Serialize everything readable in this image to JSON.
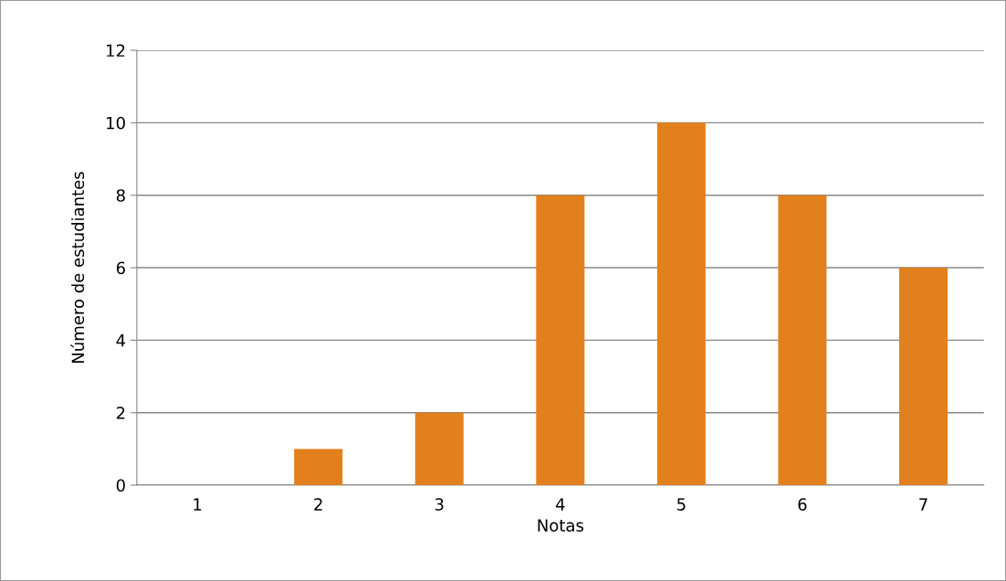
{
  "chart_data": {
    "type": "bar",
    "xlabel": "Notas",
    "ylabel": "Número de estudiantes",
    "categories": [
      "1",
      "2",
      "3",
      "4",
      "5",
      "6",
      "7"
    ],
    "values": [
      0,
      1,
      2,
      8,
      10,
      8,
      6
    ],
    "color": "#e3801e",
    "ylim": [
      0,
      12
    ],
    "yticks": [
      0,
      2,
      4,
      6,
      8,
      10,
      12
    ],
    "grid": "y",
    "legend": false
  }
}
